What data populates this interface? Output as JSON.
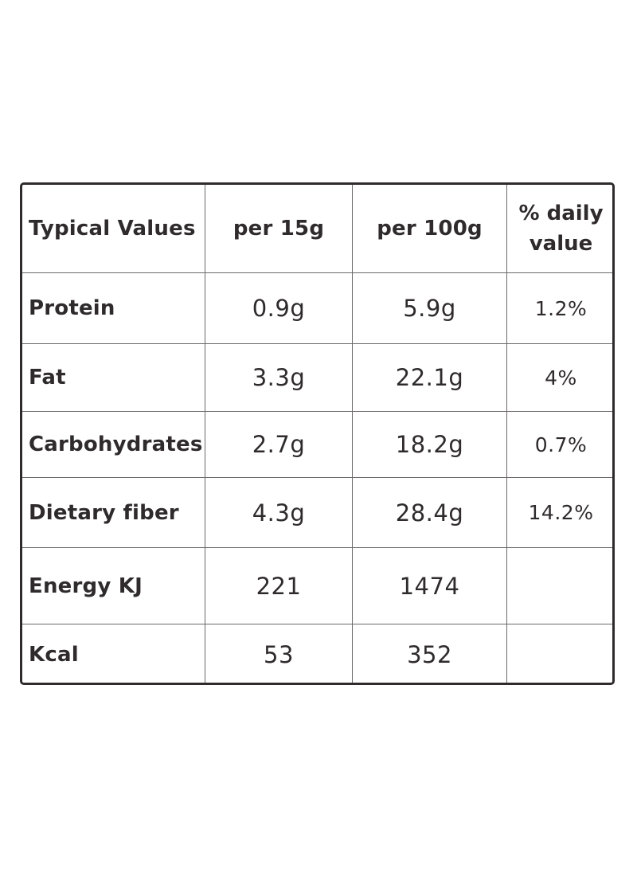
{
  "table": {
    "headers": {
      "label": "Typical Values",
      "per_15g": "per 15g",
      "per_100g": "per 100g",
      "daily_line1": "% daily",
      "daily_line2": "value"
    },
    "rows": [
      {
        "name": "Protein",
        "per_15g": "0.9g",
        "per_100g": "5.9g",
        "daily": "1.2%"
      },
      {
        "name": "Fat",
        "per_15g": "3.3g",
        "per_100g": "22.1g",
        "daily": "4%"
      },
      {
        "name": "Carbohydrates",
        "per_15g": "2.7g",
        "per_100g": "18.2g",
        "daily": "0.7%"
      },
      {
        "name": "Dietary fiber",
        "per_15g": "4.3g",
        "per_100g": "28.4g",
        "daily": "14.2%"
      },
      {
        "name": "Energy KJ",
        "per_15g": "221",
        "per_100g": "1474",
        "daily": ""
      },
      {
        "name": "Kcal",
        "per_15g": "53",
        "per_100g": "352",
        "daily": ""
      }
    ]
  },
  "colors": {
    "text": "#2f2a2b",
    "border": "#2f2a2b",
    "grid": "#6d6869",
    "background": "#ffffff"
  }
}
